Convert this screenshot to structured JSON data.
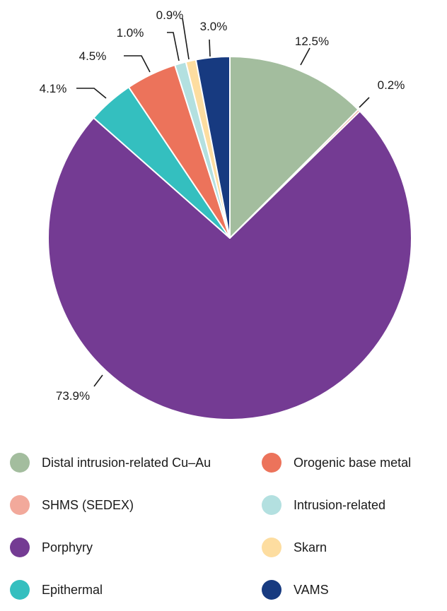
{
  "chart_data": {
    "type": "pie",
    "title": "",
    "slices": [
      {
        "label": "Distal intrusion-related Cu–Au",
        "value": 12.5,
        "display": "12.5%",
        "color": "#a3bd9e"
      },
      {
        "label": "SHMS (SEDEX)",
        "value": 0.2,
        "display": "0.2%",
        "color": "#f2a99b"
      },
      {
        "label": "Porphyry",
        "value": 73.9,
        "display": "73.9%",
        "color": "#743b93"
      },
      {
        "label": "Epithermal",
        "value": 4.1,
        "display": "4.1%",
        "color": "#34bfbf"
      },
      {
        "label": "Orogenic base metal",
        "value": 4.5,
        "display": "4.5%",
        "color": "#ec735b"
      },
      {
        "label": "Intrusion-related",
        "value": 1.0,
        "display": "1.0%",
        "color": "#b3e0e0"
      },
      {
        "label": "Skarn",
        "value": 0.9,
        "display": "0.9%",
        "color": "#fddda0"
      },
      {
        "label": "VAMS",
        "value": 3.0,
        "display": "3.0%",
        "color": "#173a80"
      }
    ],
    "legend_placement": "bottom",
    "legend_order": [
      "Distal intrusion-related Cu–Au",
      "Orogenic base metal",
      "SHMS (SEDEX)",
      "Intrusion-related",
      "Porphyry",
      "Skarn",
      "Epithermal",
      "VAMS"
    ]
  }
}
